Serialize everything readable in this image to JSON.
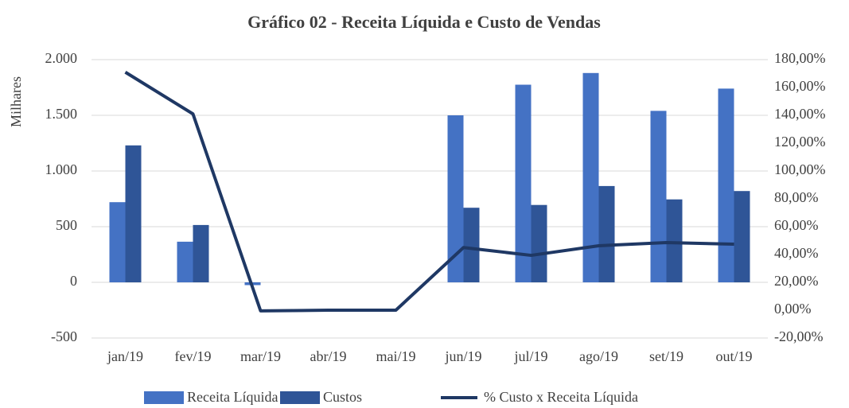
{
  "chart_data": {
    "type": "bar",
    "title": "Gráfico 02 - Receita Líquida e Custo de Vendas",
    "y_label": "Milhares",
    "categories": [
      "jan/19",
      "fev/19",
      "mar/19",
      "abr/19",
      "mai/19",
      "jun/19",
      "jul/19",
      "ago/19",
      "set/19",
      "out/19"
    ],
    "series": [
      {
        "name": "Receita Líquida",
        "type": "bar",
        "color": "#4472c4",
        "values": [
          720,
          365,
          -25,
          0,
          0,
          1500,
          1775,
          1880,
          1540,
          1740
        ]
      },
      {
        "name": "Custos",
        "type": "bar",
        "color": "#2f5597",
        "values": [
          1230,
          515,
          0,
          0,
          0,
          670,
          695,
          865,
          745,
          820
        ]
      },
      {
        "name": "% Custo x Receita Líquida",
        "type": "line",
        "axis": "y2",
        "color": "#1f3864",
        "values": [
          171,
          141,
          -0.5,
          0,
          0,
          45,
          39.4,
          46.3,
          48.6,
          47.4
        ]
      }
    ],
    "ylim": [
      -500,
      2000
    ],
    "yticks": [
      {
        "value": -500,
        "label": "-500"
      },
      0,
      500,
      {
        "value": 1000,
        "label": "1.000"
      },
      {
        "value": 1500,
        "label": "1.500"
      },
      {
        "value": 2000,
        "label": "2.000"
      }
    ],
    "y2lim": [
      -20,
      180
    ],
    "y2ticks": [
      {
        "value": -20,
        "label": "-20,00%"
      },
      {
        "value": 0,
        "label": "0,00%"
      },
      {
        "value": 20,
        "label": "20,00%"
      },
      {
        "value": 40,
        "label": "40,00%"
      },
      {
        "value": 60,
        "label": "60,00%"
      },
      {
        "value": 80,
        "label": "80,00%"
      },
      {
        "value": 100,
        "label": "100,00%"
      },
      {
        "value": 120,
        "label": "120,00%"
      },
      {
        "value": 140,
        "label": "140,00%"
      },
      {
        "value": 160,
        "label": "160,00%"
      },
      {
        "value": 180,
        "label": "180,00%"
      }
    ],
    "grid": true,
    "legend": "bottom"
  }
}
